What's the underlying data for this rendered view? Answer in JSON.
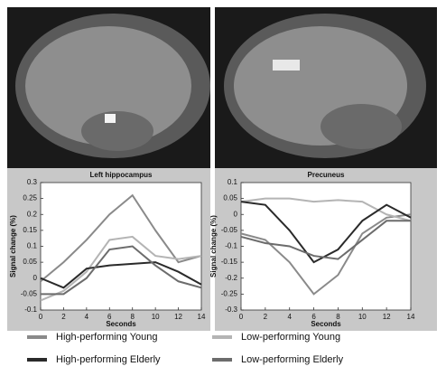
{
  "chart_data": [
    {
      "type": "line",
      "title": "Left hippocampus",
      "xlabel": "Seconds",
      "ylabel": "Signal change (%)",
      "x": [
        0,
        2,
        4,
        6,
        8,
        10,
        12,
        14
      ],
      "xlim": [
        0,
        14
      ],
      "xticks": [
        0,
        2,
        4,
        6,
        8,
        10,
        12,
        14
      ],
      "ylim": [
        -0.1,
        0.3
      ],
      "yticks": [
        -0.1,
        -0.05,
        0,
        0.05,
        0.1,
        0.15,
        0.2,
        0.25,
        0.3
      ],
      "series": [
        {
          "name": "High-performing Young",
          "color": "#8a8a8a",
          "values": [
            -0.01,
            0.05,
            0.12,
            0.2,
            0.26,
            0.15,
            0.05,
            0.07
          ]
        },
        {
          "name": "Low-performing Young",
          "color": "#b4b4b4",
          "values": [
            -0.07,
            -0.04,
            0.02,
            0.12,
            0.13,
            0.07,
            0.06,
            0.07
          ]
        },
        {
          "name": "High-performing Elderly",
          "color": "#2a2a2a",
          "values": [
            0,
            -0.03,
            0.03,
            0.04,
            0.045,
            0.05,
            0.02,
            -0.02
          ]
        },
        {
          "name": "Low-performing Elderly",
          "color": "#6c6c6c",
          "values": [
            -0.05,
            -0.05,
            0,
            0.09,
            0.1,
            0.04,
            -0.01,
            -0.03
          ]
        }
      ]
    },
    {
      "type": "line",
      "title": "Precuneus",
      "xlabel": "Seconds",
      "ylabel": "Signal change (%)",
      "x": [
        0,
        2,
        4,
        6,
        8,
        10,
        12,
        14
      ],
      "xlim": [
        0,
        14
      ],
      "xticks": [
        0,
        2,
        4,
        6,
        8,
        10,
        12,
        14
      ],
      "ylim": [
        -0.3,
        0.1
      ],
      "yticks": [
        -0.3,
        -0.25,
        -0.2,
        -0.15,
        -0.1,
        -0.05,
        0,
        0.05,
        0.1
      ],
      "series": [
        {
          "color": "#8a8a8a",
          "values": [
            -0.06,
            -0.08,
            -0.15,
            -0.25,
            -0.19,
            -0.06,
            -0.01,
            0
          ]
        },
        {
          "color": "#b4b4b4",
          "values": [
            0.04,
            0.05,
            0.05,
            0.04,
            0.045,
            0.04,
            0,
            -0.02
          ]
        },
        {
          "color": "#2a2a2a",
          "values": [
            0.04,
            0.03,
            -0.05,
            -0.15,
            -0.11,
            -0.02,
            0.03,
            -0.01
          ]
        },
        {
          "color": "#6c6c6c",
          "values": [
            -0.07,
            -0.09,
            -0.1,
            -0.13,
            -0.14,
            -0.08,
            -0.02,
            -0.02
          ]
        }
      ]
    }
  ]
}
